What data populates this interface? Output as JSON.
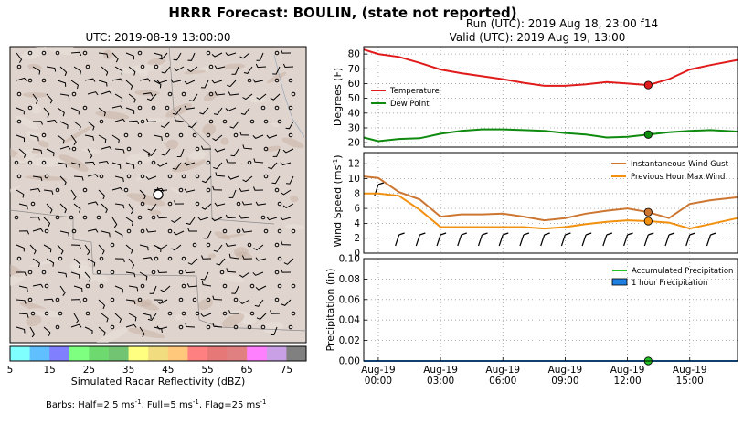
{
  "figure": {
    "title": "HRRR Forecast: BOULIN, (state not reported)",
    "run_line": "Run (UTC): 2019 Aug 18, 23:00 f14",
    "valid_line": "Valid (UTC): 2019 Aug 19, 13:00"
  },
  "map": {
    "title": "UTC: 2019-08-19 13:00:00",
    "colorbar_label": "Simulated Radar Reflectivity (dBZ)",
    "colorbar_ticks": [
      "5",
      "15",
      "25",
      "35",
      "45",
      "55",
      "65",
      "75"
    ],
    "colorbar_colors": [
      "#80ffff",
      "#5fbfff",
      "#8080ff",
      "#7fff7f",
      "#6ed96e",
      "#72c472",
      "#ffff80",
      "#f2dc80",
      "#ffc87a",
      "#ff8080",
      "#e67878",
      "#e08080",
      "#ff80ff",
      "#c9a0e6",
      "#808080"
    ],
    "barb_legend": "Barbs: Half=2.5 ms",
    "barb_legend_mid": ", Full=5 ms",
    "barb_legend_end": ", Flag=25 ms",
    "barb_legend_sup": "-1"
  },
  "chart_data": [
    {
      "type": "line",
      "ylabel": "Degrees (F)",
      "ylim": [
        17,
        85
      ],
      "yticks": [
        20,
        30,
        40,
        50,
        60,
        70,
        80
      ],
      "grid": true,
      "legend": "center-left",
      "x": [
        -0.7,
        0,
        1,
        2,
        3,
        4,
        5,
        6,
        7,
        8,
        9,
        10,
        11,
        12,
        13,
        14,
        15,
        16,
        17.3
      ],
      "series": [
        {
          "name": "Temperature",
          "color": "#e01b1b",
          "values": [
            83,
            80,
            78,
            74,
            69.5,
            67,
            65,
            63,
            60.5,
            58.5,
            58.5,
            59.5,
            61,
            60,
            59,
            63,
            69.5,
            72.5,
            76
          ]
        },
        {
          "name": "Dew Point",
          "color": "#0e8a0e",
          "values": [
            23.5,
            21,
            22.5,
            23,
            26,
            28,
            29,
            29,
            28.5,
            28,
            26.5,
            25.5,
            23.5,
            24,
            25.5,
            27,
            28,
            28.5,
            27.5
          ]
        }
      ],
      "marker": {
        "x": 13,
        "values": [
          59,
          25.5
        ]
      }
    },
    {
      "type": "line",
      "ylabel": "Wind Speed (ms",
      "ylabel_sup": "-1",
      "ylabel_end": ")",
      "ylim": [
        0,
        13.5
      ],
      "yticks": [
        0,
        2,
        4,
        6,
        8,
        10,
        12
      ],
      "grid": true,
      "legend": "top-right",
      "x": [
        -0.7,
        0,
        1,
        2,
        3,
        4,
        5,
        6,
        7,
        8,
        9,
        10,
        11,
        12,
        13,
        14,
        15,
        16,
        17.3
      ],
      "series": [
        {
          "name": "Instantaneous Wind Gust",
          "color": "#cd7631",
          "values": [
            10.3,
            10.1,
            8.2,
            7.2,
            4.9,
            5.2,
            5.2,
            5.3,
            4.9,
            4.4,
            4.7,
            5.3,
            5.7,
            6,
            5.5,
            4.7,
            6.6,
            7.1,
            7.5
          ]
        },
        {
          "name": "Previous Hour Max Wind",
          "color": "#f2900f",
          "values": [
            8,
            8,
            7.7,
            5.8,
            3.5,
            3.5,
            3.5,
            3.5,
            3.5,
            3.3,
            3.5,
            3.9,
            4.2,
            4.4,
            4.3,
            4.1,
            3.3,
            3.9,
            4.7
          ]
        }
      ],
      "marker": {
        "x": 13,
        "values": [
          5.5,
          4.3
        ]
      }
    },
    {
      "type": "line",
      "ylabel": "Precipitation (in)",
      "ylim": [
        0,
        0.1
      ],
      "yticks": [
        "0.00",
        "0.02",
        "0.04",
        "0.06",
        "0.08",
        "0.10"
      ],
      "grid": true,
      "legend": "top-right",
      "x": [
        -0.7,
        17.3
      ],
      "series": [
        {
          "name": "Accumulated Precipitation",
          "color": "#22c222",
          "values": [
            0,
            0
          ]
        },
        {
          "name": "1 hour Precipitation",
          "color": "#1f7fe0",
          "values": [
            0,
            0
          ]
        }
      ],
      "marker": {
        "x": 13,
        "values": [
          0
        ]
      }
    }
  ],
  "xaxis": {
    "ticks": [
      {
        "x": 0,
        "line1": "Aug-19",
        "line2": "00:00"
      },
      {
        "x": 3,
        "line1": "Aug-19",
        "line2": "03:00"
      },
      {
        "x": 6,
        "line1": "Aug-19",
        "line2": "06:00"
      },
      {
        "x": 9,
        "line1": "Aug-19",
        "line2": "09:00"
      },
      {
        "x": 12,
        "line1": "Aug-19",
        "line2": "12:00"
      },
      {
        "x": 15,
        "line1": "Aug-19",
        "line2": "15:00"
      }
    ]
  }
}
